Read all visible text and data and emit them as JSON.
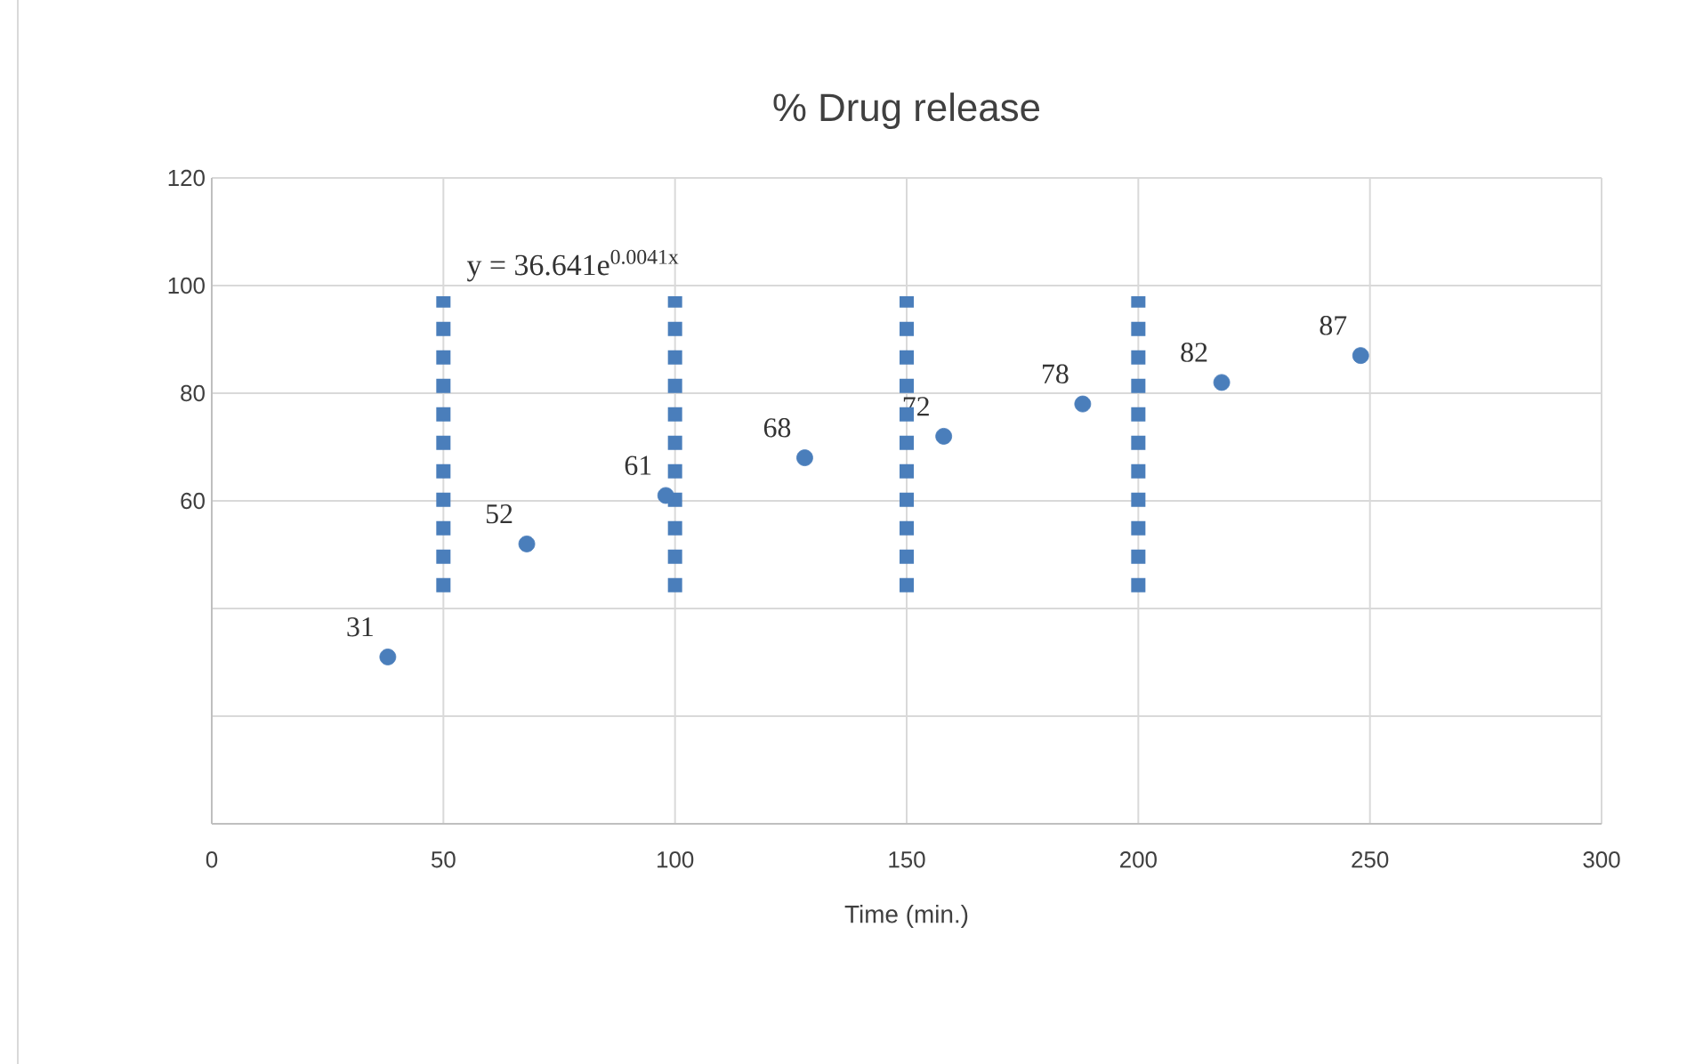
{
  "chart_data": {
    "type": "scatter",
    "title": "% Drug release",
    "xlabel": "Time (min.)",
    "xlim": [
      0,
      300
    ],
    "xticks": [
      0,
      50,
      100,
      150,
      200,
      250,
      300
    ],
    "ylim": [
      0,
      120
    ],
    "yticks": [
      {
        "value": 0,
        "label": null
      },
      {
        "value": 20,
        "label": null
      },
      {
        "value": 40,
        "label": null
      },
      60,
      80,
      100,
      120
    ],
    "grid": true,
    "annotations": [
      "y = 36.641e$^{0.0041x}$"
    ],
    "series": [
      {
        "marker": "circle",
        "color": "#4a7ebb",
        "x": [
          38,
          68,
          98,
          128,
          158,
          188,
          218,
          248
        ],
        "values": [
          31,
          52,
          61,
          68,
          72,
          78,
          82,
          87
        ],
        "value_labels": [
          "31",
          "52",
          "61",
          "68",
          "72",
          "78",
          "82",
          "87"
        ]
      },
      {
        "type": "line",
        "marker": "none",
        "line_style": "dotted",
        "color": "#4a7ebb",
        "x": [
          50,
          50
        ],
        "values": [
          43,
          98
        ]
      },
      {
        "type": "line",
        "marker": "none",
        "line_style": "dotted",
        "color": "#4a7ebb",
        "x": [
          100,
          100
        ],
        "values": [
          43,
          98
        ]
      },
      {
        "type": "line",
        "marker": "none",
        "line_style": "dotted",
        "color": "#4a7ebb",
        "x": [
          150,
          150
        ],
        "values": [
          43,
          98
        ]
      },
      {
        "type": "line",
        "marker": "none",
        "line_style": "dotted",
        "color": "#4a7ebb",
        "x": [
          200,
          200
        ],
        "values": [
          43,
          98
        ]
      }
    ]
  }
}
